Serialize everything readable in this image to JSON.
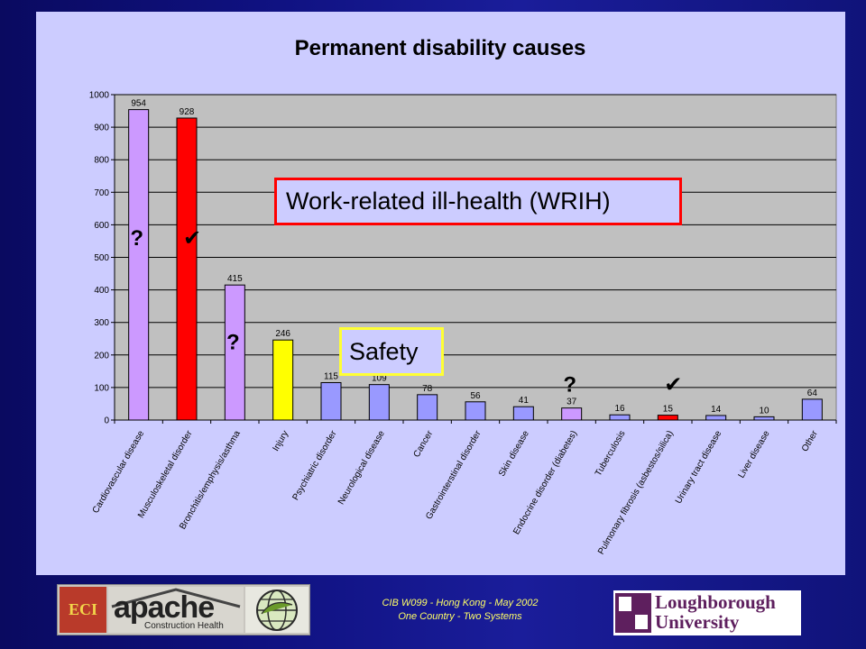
{
  "chart_data": {
    "type": "bar",
    "title": "Permanent disability causes",
    "xlabel": "",
    "ylabel": "",
    "ylim": [
      0,
      1000
    ],
    "yticks": [
      0,
      100,
      200,
      300,
      400,
      500,
      600,
      700,
      800,
      900,
      1000
    ],
    "grid": true,
    "categories": [
      "Cardiovascular disease",
      "Musculoskeletal disorder",
      "Bronchitis/emphysis/asthma",
      "Injury",
      "Psychiatric disorder",
      "Neurological disease",
      "Cancer",
      "Gastrointerstinal disorder",
      "Skin disease",
      "Endocrine disorder (diabetes)",
      "Tuberculosis",
      "Pulmonary fibrosis (asbestos/silica)",
      "Urinary tract disease",
      "Liver disease",
      "Other"
    ],
    "values": [
      954,
      928,
      415,
      246,
      115,
      109,
      78,
      56,
      41,
      37,
      16,
      15,
      14,
      10,
      64
    ],
    "bar_colors": [
      "#cc99ff",
      "#ff0000",
      "#cc99ff",
      "#ffff00",
      "#9999ff",
      "#9999ff",
      "#9999ff",
      "#9999ff",
      "#9999ff",
      "#cc99ff",
      "#9999ff",
      "#ff0000",
      "#9999ff",
      "#9999ff",
      "#9999ff"
    ],
    "annotations": [
      {
        "text": "?",
        "category": "Cardiovascular disease",
        "y": 560
      },
      {
        "text": "?",
        "category": "Bronchitis/emphysis/asthma",
        "y": 240
      },
      {
        "text": "?",
        "category": "Endocrine disorder (diabetes)",
        "y": 110
      },
      {
        "text": "✔",
        "category": "Musculoskeletal disorder",
        "y": 560
      },
      {
        "text": "✔",
        "category": "Pulmonary fibrosis (asbestos/silica)",
        "y": 110
      }
    ],
    "callouts": [
      {
        "text": "Work-related ill-health (WRIH)",
        "border_color": "#ff0000"
      },
      {
        "text": "Safety",
        "border_color": "#ffff33"
      }
    ],
    "plot_background": "#c0c0c0"
  },
  "footer": {
    "line1": "CIB W099 - Hong Kong - May 2002",
    "line2": "One Country - Two Systems",
    "logo_eci": "ECI",
    "logo_apache": "apache",
    "logo_apache_sub": "Construction Health",
    "logo_university_line1": "Loughborough",
    "logo_university_line2": "University"
  }
}
